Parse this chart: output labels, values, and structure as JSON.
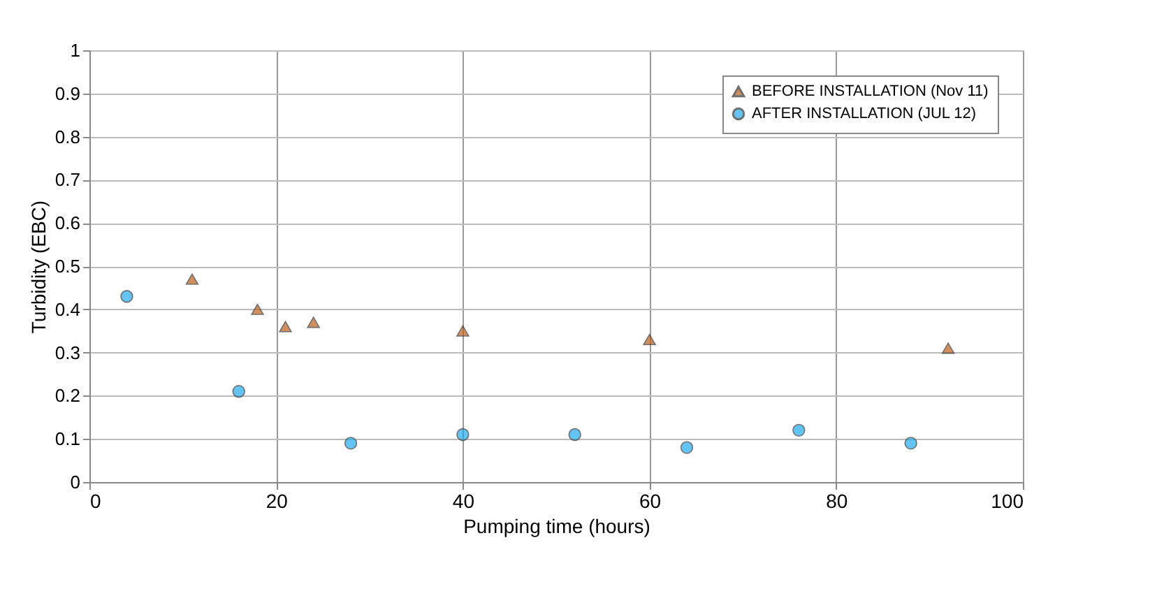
{
  "chart_data": {
    "type": "scatter",
    "xlabel": "Pumping time (hours)",
    "ylabel": "Turbidity (EBC)",
    "xlim": [
      0,
      100
    ],
    "xticks": [
      0,
      20,
      40,
      60,
      80,
      100
    ],
    "ylim": [
      0,
      1
    ],
    "yticks": [
      0,
      0.1,
      0.2,
      0.3,
      0.4,
      0.5,
      0.6,
      0.7,
      0.8,
      0.9,
      1
    ],
    "grid": true,
    "legend": "top right",
    "series": [
      {
        "name": "BEFORE INSTALLATION (Nov 11)",
        "color": "#c0601a",
        "marker": "triangle",
        "x": [
          11,
          18,
          21,
          24,
          40,
          60,
          92
        ],
        "values": [
          0.47,
          0.4,
          0.36,
          0.37,
          0.35,
          0.33,
          0.31
        ]
      },
      {
        "name": "AFTER INSTALLATION (JUL 12)",
        "color": "#22aaee",
        "marker": "circle",
        "x": [
          4,
          16,
          28,
          40,
          52,
          64,
          76,
          88
        ],
        "values": [
          0.43,
          0.21,
          0.09,
          0.11,
          0.11,
          0.08,
          0.12,
          0.09
        ]
      }
    ]
  }
}
